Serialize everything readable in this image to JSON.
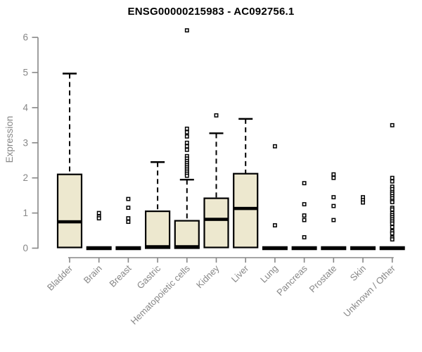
{
  "chart_data": {
    "type": "boxplot",
    "title": "ENSG00000215983 - AC092756.1",
    "ylabel": "Expression",
    "xlabel": "",
    "ylim": [
      0,
      6
    ],
    "yticks": [
      0,
      1,
      2,
      3,
      4,
      5,
      6
    ],
    "grid": false,
    "legend": "none",
    "categories": [
      "Bladder",
      "Brain",
      "Breast",
      "Gastric",
      "Hematopoietic cells",
      "Kidney",
      "Liver",
      "Lung",
      "Pancreas",
      "Prostate",
      "Skin",
      "Unknown / Other"
    ],
    "boxes": [
      {
        "category": "Bladder",
        "q1": 0.02,
        "median": 0.75,
        "q3": 2.1,
        "whisker_low": 0.02,
        "whisker_high": 4.97,
        "outliers": []
      },
      {
        "category": "Brain",
        "q1": 0.0,
        "median": 0.0,
        "q3": 0.02,
        "whisker_low": 0.0,
        "whisker_high": 0.02,
        "outliers": [
          1.0,
          0.9,
          0.85
        ]
      },
      {
        "category": "Breast",
        "q1": 0.0,
        "median": 0.0,
        "q3": 0.02,
        "whisker_low": 0.0,
        "whisker_high": 0.02,
        "outliers": [
          1.4,
          1.15,
          0.85,
          0.75
        ]
      },
      {
        "category": "Gastric",
        "q1": 0.0,
        "median": 0.04,
        "q3": 1.05,
        "whisker_low": 0.0,
        "whisker_high": 2.45,
        "outliers": []
      },
      {
        "category": "Hematopoietic cells",
        "q1": 0.0,
        "median": 0.04,
        "q3": 0.78,
        "whisker_low": 0.0,
        "whisker_high": 1.95,
        "outliers": [
          6.2,
          3.4,
          3.3,
          3.18,
          3.0,
          2.9,
          2.8,
          2.62,
          2.55,
          2.48,
          2.42,
          2.36,
          2.3,
          2.24,
          2.18,
          2.12,
          2.06
        ]
      },
      {
        "category": "Kidney",
        "q1": 0.02,
        "median": 0.82,
        "q3": 1.42,
        "whisker_low": 0.02,
        "whisker_high": 3.27,
        "outliers": [
          3.78
        ]
      },
      {
        "category": "Liver",
        "q1": 0.02,
        "median": 1.13,
        "q3": 2.12,
        "whisker_low": 0.02,
        "whisker_high": 3.68,
        "outliers": []
      },
      {
        "category": "Lung",
        "q1": 0.0,
        "median": 0.0,
        "q3": 0.02,
        "whisker_low": 0.0,
        "whisker_high": 0.02,
        "outliers": [
          2.9,
          0.65
        ]
      },
      {
        "category": "Pancreas",
        "q1": 0.0,
        "median": 0.0,
        "q3": 0.02,
        "whisker_low": 0.0,
        "whisker_high": 0.02,
        "outliers": [
          1.85,
          1.25,
          0.93,
          0.8,
          0.31
        ]
      },
      {
        "category": "Prostate",
        "q1": 0.0,
        "median": 0.0,
        "q3": 0.02,
        "whisker_low": 0.0,
        "whisker_high": 0.02,
        "outliers": [
          2.1,
          2.0,
          1.45,
          1.2,
          0.8
        ]
      },
      {
        "category": "Skin",
        "q1": 0.0,
        "median": 0.0,
        "q3": 0.02,
        "whisker_low": 0.0,
        "whisker_high": 0.02,
        "outliers": [
          1.45,
          1.37,
          1.3
        ]
      },
      {
        "category": "Unknown / Other",
        "q1": 0.0,
        "median": 0.0,
        "q3": 0.02,
        "whisker_low": 0.0,
        "whisker_high": 0.02,
        "outliers": [
          3.5,
          2.0,
          1.9,
          1.75,
          1.68,
          1.6,
          1.55,
          1.48,
          1.42,
          1.35,
          1.31,
          1.15,
          1.1,
          1.0,
          0.94,
          0.88,
          0.82,
          0.76,
          0.7,
          0.6,
          0.48,
          0.42,
          0.3,
          0.25
        ]
      }
    ],
    "colors": {
      "box_fill": "#EDE8CF",
      "box_border": "#000000",
      "median": "#000000",
      "whisker": "#000000",
      "outlier_stroke": "#000000",
      "outlier_fill": "#ffffff",
      "axis": "#878787",
      "tick_label": "#878787",
      "title": "#000000"
    }
  }
}
